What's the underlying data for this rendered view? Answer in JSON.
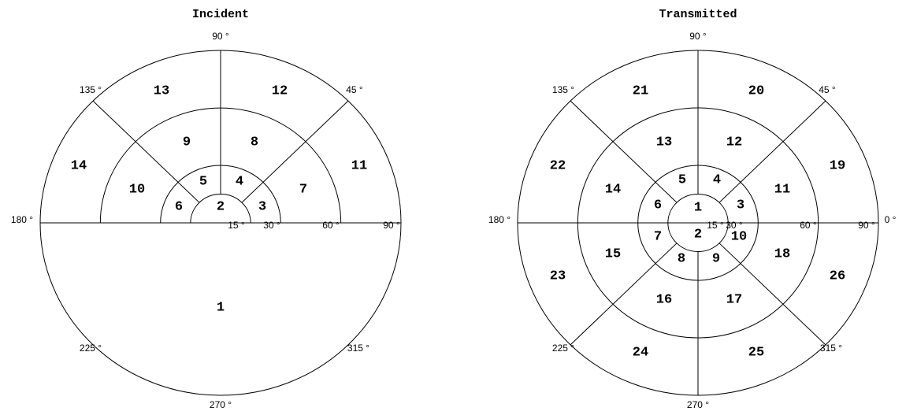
{
  "left": {
    "title": "Incident",
    "angle_labels": [
      "90 °",
      "135 °",
      "45 °",
      "180 °",
      "15 °",
      "30 °",
      "60 °",
      "90 °",
      "225 °",
      "315 °",
      "270 °"
    ],
    "regions": [
      "13",
      "12",
      "9",
      "8",
      "14",
      "11",
      "10",
      "7",
      "5",
      "4",
      "6",
      "3",
      "2",
      "1"
    ]
  },
  "right": {
    "title": "Transmitted",
    "angle_labels": [
      "90 °",
      "135 °",
      "45 °",
      "180 °",
      "15 °",
      "30 °",
      "60 °",
      "90 °",
      "0 °",
      "225 °",
      "315 °",
      "270 °"
    ],
    "regions": [
      "21",
      "20",
      "13",
      "12",
      "22",
      "19",
      "14",
      "11",
      "5",
      "4",
      "6",
      "3",
      "1",
      "2",
      "7",
      "10",
      "15",
      "18",
      "23",
      "26",
      "8",
      "9",
      "16",
      "17",
      "24",
      "25"
    ]
  }
}
